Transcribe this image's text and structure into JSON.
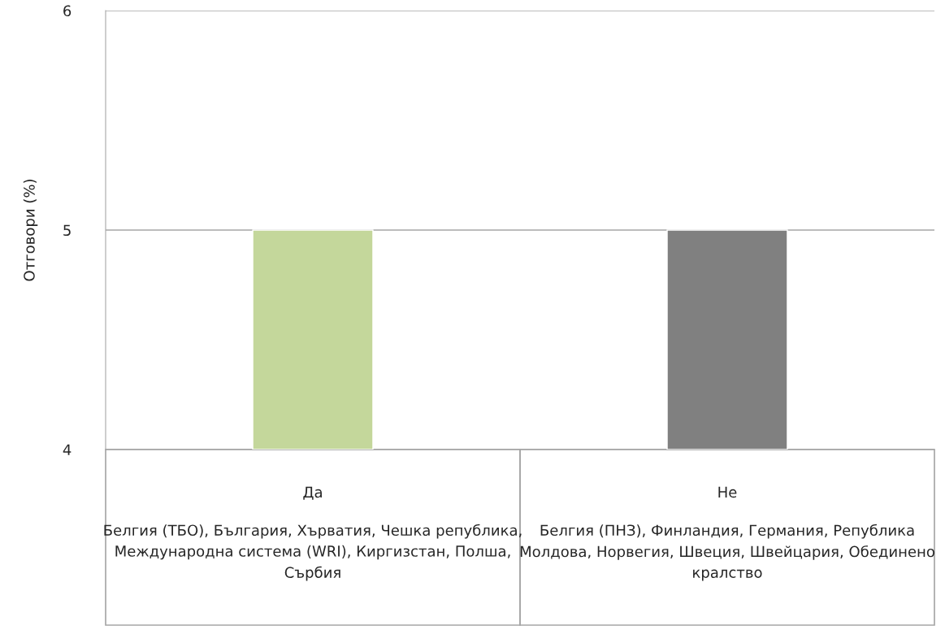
{
  "chart_data": {
    "type": "bar",
    "ylabel": "Отговори (%)",
    "categories": [
      "Да",
      "Не"
    ],
    "values": [
      5,
      5
    ],
    "colors": [
      "#c4d79b",
      "#808080"
    ],
    "ylim": [
      4,
      6
    ],
    "yticks": [
      4,
      5,
      6
    ],
    "grid": "y",
    "annotations": [
      "Белгия (ТБО), България, Хърватия, Чешка република, Международна система (WRI), Киргизстан, Полша, Сърбия",
      "Белгия (ПНЗ), Финландия, Германия, Република Молдова, Норвегия, Швеция, Швейцария, Обединено кралство"
    ]
  }
}
